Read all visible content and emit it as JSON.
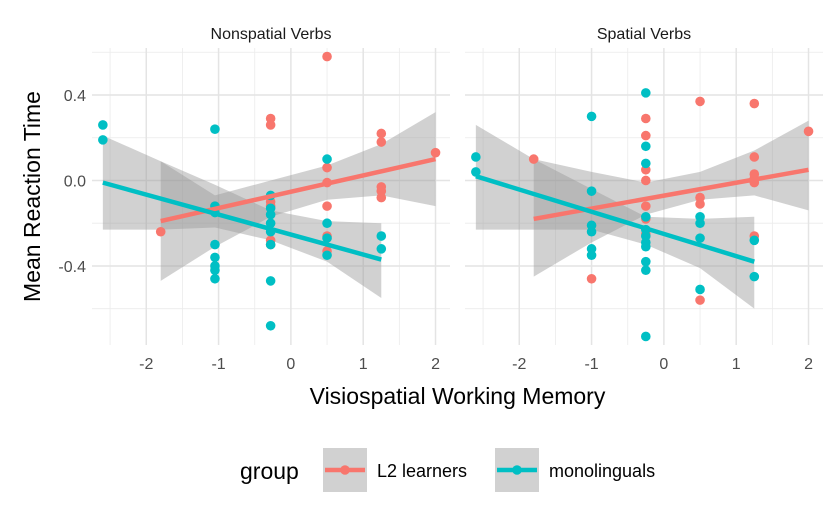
{
  "chart_data": {
    "type": "scatter",
    "xlabel": "Visiospatial Working Memory",
    "ylabel": "Mean Reaction Time",
    "xlim": [
      -2.75,
      2.2
    ],
    "ylim": [
      -0.77,
      0.62
    ],
    "x_ticks": [
      -2,
      -1,
      0,
      1,
      2
    ],
    "y_ticks": [
      -0.4,
      0.0,
      0.4
    ],
    "x_tick_labels": [
      "-2",
      "-1",
      "0",
      "1",
      "2"
    ],
    "y_tick_labels": [
      "-0.4",
      "0.0",
      "0.4"
    ],
    "grid": true,
    "legend": {
      "title": "group",
      "position": "bottom",
      "entries": [
        {
          "label": "L2 learners",
          "color": "#F8766D"
        },
        {
          "label": "monolinguals",
          "color": "#00BFC4"
        }
      ]
    },
    "colors": {
      "L2 learners": "#F8766D",
      "monolinguals": "#00BFC4",
      "band": "#999999"
    },
    "panels": [
      {
        "title": "Nonspatial Verbs",
        "series": [
          {
            "name": "L2 learners",
            "points": [
              [
                -1.8,
                -0.24
              ],
              [
                -1.05,
                -0.12
              ],
              [
                -1.05,
                -0.14
              ],
              [
                -0.28,
                0.29
              ],
              [
                -0.28,
                0.26
              ],
              [
                -0.28,
                -0.1
              ],
              [
                -0.28,
                -0.12
              ],
              [
                -0.28,
                -0.28
              ],
              [
                -0.28,
                -0.3
              ],
              [
                0.5,
                0.58
              ],
              [
                0.5,
                0.06
              ],
              [
                0.5,
                -0.01
              ],
              [
                0.5,
                -0.12
              ],
              [
                0.5,
                -0.26
              ],
              [
                0.5,
                -0.33
              ],
              [
                1.25,
                0.22
              ],
              [
                1.25,
                0.18
              ],
              [
                1.25,
                -0.03
              ],
              [
                1.25,
                -0.05
              ],
              [
                1.25,
                -0.08
              ],
              [
                2.0,
                0.13
              ]
            ],
            "fit": {
              "x": [
                -1.8,
                2.0
              ],
              "y": [
                -0.19,
                0.1
              ]
            },
            "band": {
              "x": [
                -1.8,
                -1.05,
                -0.28,
                0.5,
                1.25,
                2.0
              ],
              "lower": [
                -0.47,
                -0.31,
                -0.17,
                -0.09,
                -0.07,
                -0.12
              ],
              "upper": [
                0.09,
                -0.07,
                0.0,
                0.07,
                0.17,
                0.32
              ]
            }
          },
          {
            "name": "monolinguals",
            "points": [
              [
                -2.6,
                0.26
              ],
              [
                -2.6,
                0.19
              ],
              [
                -1.05,
                0.24
              ],
              [
                -1.05,
                -0.12
              ],
              [
                -1.05,
                -0.15
              ],
              [
                -1.05,
                -0.3
              ],
              [
                -1.05,
                -0.36
              ],
              [
                -1.05,
                -0.4
              ],
              [
                -1.05,
                -0.42
              ],
              [
                -1.05,
                -0.46
              ],
              [
                -0.28,
                -0.07
              ],
              [
                -0.28,
                -0.13
              ],
              [
                -0.28,
                -0.16
              ],
              [
                -0.28,
                -0.2
              ],
              [
                -0.28,
                -0.24
              ],
              [
                -0.28,
                -0.3
              ],
              [
                -0.28,
                -0.47
              ],
              [
                -0.28,
                -0.68
              ],
              [
                0.5,
                0.1
              ],
              [
                0.5,
                -0.2
              ],
              [
                0.5,
                -0.27
              ],
              [
                0.5,
                -0.35
              ],
              [
                1.25,
                -0.26
              ],
              [
                1.25,
                -0.32
              ]
            ],
            "fit": {
              "x": [
                -2.6,
                1.25
              ],
              "y": [
                -0.01,
                -0.37
              ]
            },
            "band": {
              "x": [
                -2.6,
                -1.8,
                -1.05,
                -0.28,
                0.5,
                1.25
              ],
              "lower": [
                -0.23,
                -0.23,
                -0.22,
                -0.28,
                -0.38,
                -0.55
              ],
              "upper": [
                0.21,
                0.09,
                -0.02,
                -0.14,
                -0.19,
                -0.2
              ]
            }
          }
        ]
      },
      {
        "title": "Spatial Verbs",
        "series": [
          {
            "name": "L2 learners",
            "points": [
              [
                -1.8,
                0.1
              ],
              [
                -1.0,
                -0.46
              ],
              [
                -0.25,
                0.29
              ],
              [
                -0.25,
                0.21
              ],
              [
                -0.25,
                0.05
              ],
              [
                -0.25,
                -0.0
              ],
              [
                -0.25,
                -0.12
              ],
              [
                -0.25,
                -0.18
              ],
              [
                -0.25,
                -0.25
              ],
              [
                0.5,
                0.37
              ],
              [
                0.5,
                -0.08
              ],
              [
                0.5,
                -0.11
              ],
              [
                0.5,
                -0.56
              ],
              [
                1.25,
                0.36
              ],
              [
                1.25,
                0.11
              ],
              [
                1.25,
                0.03
              ],
              [
                1.25,
                0.01
              ],
              [
                1.25,
                -0.01
              ],
              [
                1.25,
                -0.26
              ],
              [
                2.0,
                0.23
              ]
            ],
            "fit": {
              "x": [
                -1.8,
                2.0
              ],
              "y": [
                -0.18,
                0.05
              ]
            },
            "band": {
              "x": [
                -1.8,
                -1.0,
                -0.25,
                0.5,
                1.25,
                2.0
              ],
              "lower": [
                -0.45,
                -0.29,
                -0.16,
                -0.09,
                -0.07,
                -0.14
              ],
              "upper": [
                0.1,
                0.04,
                -0.01,
                0.04,
                0.14,
                0.28
              ]
            }
          },
          {
            "name": "monolinguals",
            "points": [
              [
                -2.6,
                0.11
              ],
              [
                -2.6,
                0.04
              ],
              [
                -1.0,
                0.3
              ],
              [
                -1.0,
                -0.05
              ],
              [
                -1.0,
                -0.21
              ],
              [
                -1.0,
                -0.24
              ],
              [
                -1.0,
                -0.32
              ],
              [
                -1.0,
                -0.35
              ],
              [
                -0.25,
                0.41
              ],
              [
                -0.25,
                0.16
              ],
              [
                -0.25,
                0.08
              ],
              [
                -0.25,
                -0.17
              ],
              [
                -0.25,
                -0.23
              ],
              [
                -0.25,
                -0.26
              ],
              [
                -0.25,
                -0.29
              ],
              [
                -0.25,
                -0.31
              ],
              [
                -0.25,
                -0.38
              ],
              [
                -0.25,
                -0.42
              ],
              [
                -0.25,
                -0.73
              ],
              [
                0.5,
                -0.17
              ],
              [
                0.5,
                -0.2
              ],
              [
                0.5,
                -0.27
              ],
              [
                0.5,
                -0.51
              ],
              [
                1.25,
                -0.28
              ],
              [
                1.25,
                -0.45
              ]
            ],
            "fit": {
              "x": [
                -2.6,
                1.25
              ],
              "y": [
                0.02,
                -0.38
              ]
            },
            "band": {
              "x": [
                -2.6,
                -1.8,
                -1.0,
                -0.25,
                0.5,
                1.25
              ],
              "lower": [
                -0.23,
                -0.23,
                -0.23,
                -0.3,
                -0.41,
                -0.6
              ],
              "upper": [
                0.26,
                0.1,
                -0.04,
                -0.17,
                -0.18,
                -0.17
              ]
            }
          }
        ]
      }
    ]
  }
}
